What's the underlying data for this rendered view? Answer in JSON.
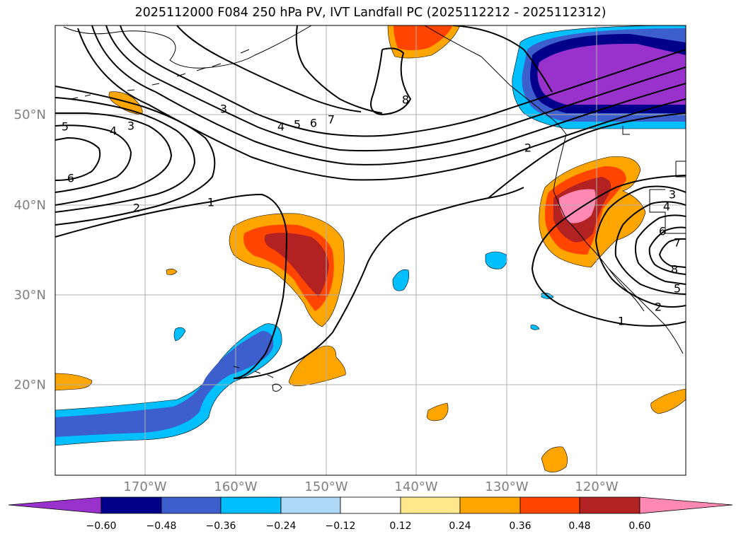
{
  "title": "2025112000 F084 250 hPa PV, IVT Landfall PC (2025112212 - 2025112312)",
  "lat_labels": [
    "50°N",
    "40°N",
    "30°N",
    "20°N"
  ],
  "lon_labels": [
    "170°W",
    "160°W",
    "150°W",
    "140°W",
    "130°W",
    "120°W"
  ],
  "colorbar": {
    "ticks": [
      "−0.60",
      "−0.48",
      "−0.36",
      "−0.24",
      "−0.12",
      "0.12",
      "0.24",
      "0.36",
      "0.48",
      "0.60"
    ],
    "colors": [
      "#9932cc",
      "#00008b",
      "#3d5fcd",
      "#00bfff",
      "#add8f6",
      "#ffffff",
      "#ffe88c",
      "#ffa500",
      "#ff4500",
      "#b22222",
      "#ff89b3"
    ]
  },
  "contour_labels": {
    "west": [
      "5",
      "4",
      "3",
      "6",
      "2",
      "1",
      "3",
      "4",
      "5",
      "6",
      "7",
      "8"
    ],
    "east": [
      "2",
      "3",
      "4",
      "6",
      "7",
      "8",
      "5",
      "2",
      "1"
    ]
  }
}
